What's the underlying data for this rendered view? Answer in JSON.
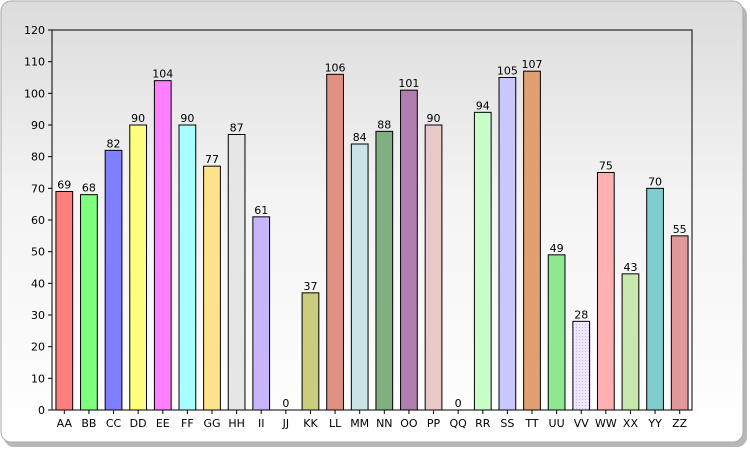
{
  "chart_data": {
    "type": "bar",
    "categories": [
      "AA",
      "BB",
      "CC",
      "DD",
      "EE",
      "FF",
      "GG",
      "HH",
      "II",
      "JJ",
      "KK",
      "LL",
      "MM",
      "NN",
      "OO",
      "PP",
      "QQ",
      "RR",
      "SS",
      "TT",
      "UU",
      "VV",
      "WW",
      "XX",
      "YY",
      "ZZ"
    ],
    "values": [
      69,
      68,
      82,
      90,
      104,
      90,
      77,
      87,
      61,
      0,
      37,
      106,
      84,
      88,
      101,
      90,
      0,
      94,
      105,
      107,
      49,
      28,
      75,
      43,
      70,
      55
    ],
    "colors": [
      "#ff7f7f",
      "#7fff7f",
      "#7f7fff",
      "#ffff7f",
      "#ff7fff",
      "#a8ffff",
      "#ffe38c",
      "#e6e6e6",
      "#c8b4ff",
      "#cccccc",
      "#cccc7f",
      "#e09080",
      "#c8e4e4",
      "#7fb07f",
      "#b07fb0",
      "#e8c8c8",
      "#cccccc",
      "#c8ffc8",
      "#c8c8ff",
      "#e0a070",
      "#90e890",
      "#e8d8ff",
      "#ffb0b0",
      "#c8e8b0",
      "#7fcccc",
      "#e09898"
    ],
    "ylim": [
      0,
      120
    ],
    "yticks": [
      0,
      10,
      20,
      30,
      40,
      50,
      60,
      70,
      80,
      90,
      100,
      110,
      120
    ],
    "grid": false,
    "legend": "none",
    "data_labels": true
  }
}
